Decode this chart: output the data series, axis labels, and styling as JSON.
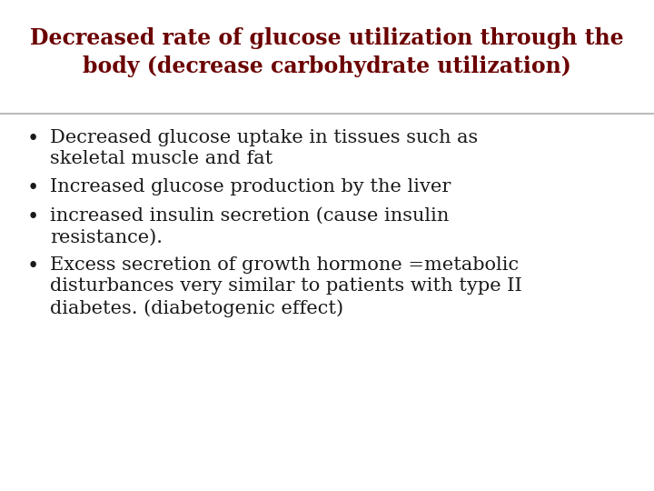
{
  "title_line1": "Decreased rate of glucose utilization through the",
  "title_line2": "body (decrease carbohydrate utilization)",
  "title_color": "#6B0000",
  "title_fontsize": 17,
  "title_fontstyle": "bold",
  "title_fontfamily": "serif",
  "separator_color": "#BBBBBB",
  "background_color": "#FFFFFF",
  "bullet_color": "#1A1A1A",
  "bullet_fontsize": 15,
  "bullet_fontfamily": "serif",
  "bullets": [
    "Decreased glucose uptake in tissues such as\nskeletal muscle and fat",
    "Increased glucose production by the liver",
    "increased insulin secretion (cause insulin\nresistance).",
    "Excess secretion of growth hormone =metabolic\ndisturbances very similar to patients with type II\ndiabetes. (diabetogenic effect)"
  ],
  "bullet_marker": "•",
  "fig_width": 7.2,
  "fig_height": 5.4,
  "fig_dpi": 100
}
